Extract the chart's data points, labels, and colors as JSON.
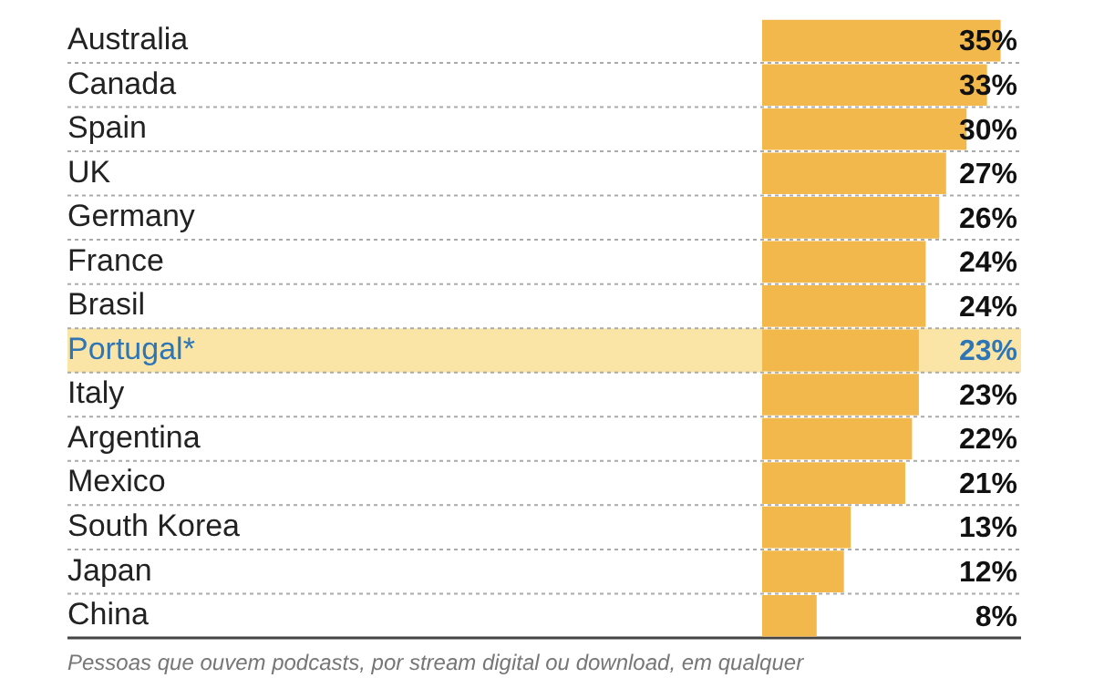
{
  "chart_data": {
    "type": "bar",
    "orientation": "horizontal",
    "categories": [
      "Australia",
      "Canada",
      "Spain",
      "UK",
      "Germany",
      "France",
      "Brasil",
      "Portugal*",
      "Italy",
      "Argentina",
      "Mexico",
      "South Korea",
      "Japan",
      "China"
    ],
    "values": [
      35,
      33,
      30,
      27,
      26,
      24,
      24,
      23,
      23,
      22,
      21,
      13,
      12,
      8
    ],
    "value_labels": [
      "35%",
      "33%",
      "30%",
      "27%",
      "26%",
      "24%",
      "24%",
      "23%",
      "23%",
      "22%",
      "21%",
      "13%",
      "12%",
      "8%"
    ],
    "color": "#f2b84b",
    "xlim": [
      0,
      38
    ],
    "tick_labels": "y",
    "grid": "y",
    "bands": [
      {
        "axis": "y",
        "from": "Portugal*",
        "to": "Portugal*",
        "color": "#fbe5a6"
      }
    ],
    "annotations": [
      "Pessoas que ouvem podcasts, por stream digital ou download, em qualquer"
    ]
  }
}
